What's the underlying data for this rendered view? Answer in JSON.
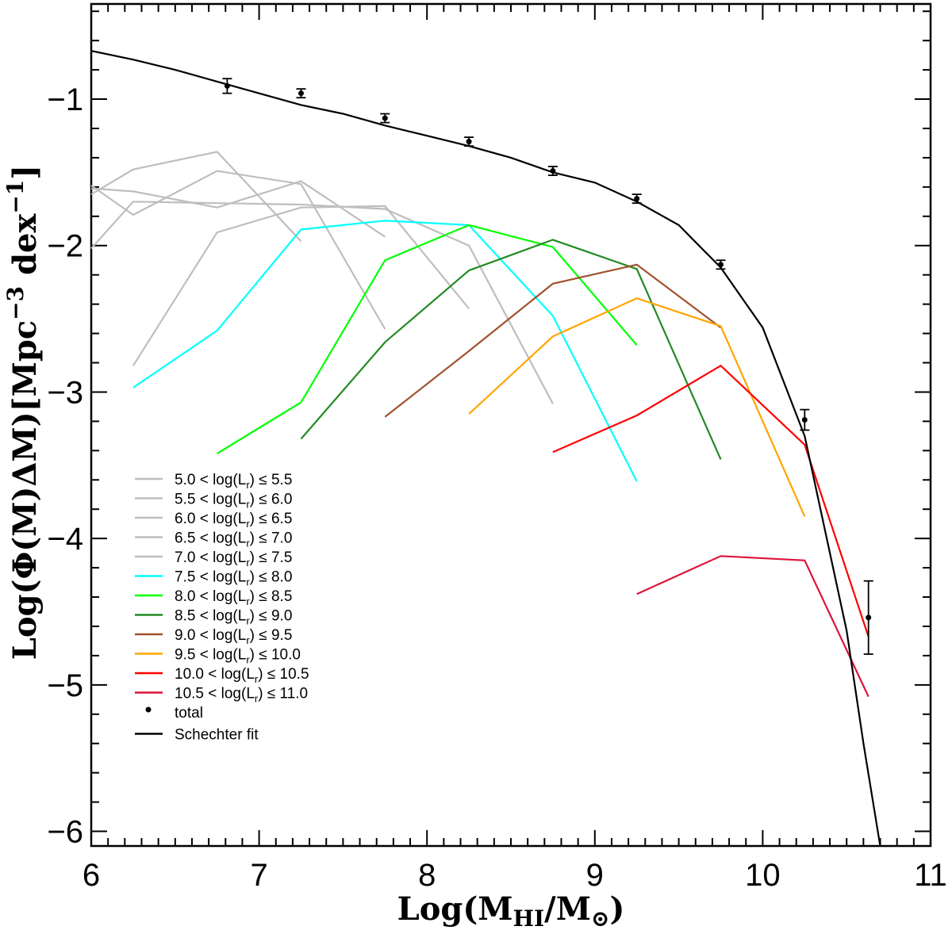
{
  "chart_data": {
    "type": "line",
    "xlabel": "Log(M_HI/M_⊙)",
    "ylabel": "Log(Φ(M)ΔM)[Mpc^-3 dex^-1]",
    "xlim": [
      6,
      11
    ],
    "ylim": [
      -6.1,
      -0.35
    ],
    "xticks": [
      6,
      7,
      8,
      9,
      10,
      11
    ],
    "yticks": [
      -6,
      -5,
      -4,
      -3,
      -2,
      -1
    ],
    "xtick_labels": [
      "6",
      "7",
      "8",
      "9",
      "10",
      "11"
    ],
    "ytick_labels": [
      "−6",
      "−5",
      "−4",
      "−3",
      "−2",
      "−1"
    ],
    "legend_position": "lower-left",
    "series": [
      {
        "name": "5.0 < log(L_r) ≤ 5.5",
        "color": "#bebebe",
        "x": [
          6.0,
          6.25,
          6.75,
          7.25
        ],
        "y": [
          -1.65,
          -1.48,
          -1.36,
          -1.97
        ]
      },
      {
        "name": "5.5 < log(L_r) ≤ 6.0",
        "color": "#bebebe",
        "x": [
          6.0,
          6.25,
          6.75,
          7.25,
          7.75
        ],
        "y": [
          -1.61,
          -1.63,
          -1.74,
          -1.56,
          -1.94
        ]
      },
      {
        "name": "6.0 < log(L_r) ≤ 6.5",
        "color": "#bebebe",
        "x": [
          6.0,
          6.25,
          6.75,
          7.25,
          7.75
        ],
        "y": [
          -1.59,
          -1.79,
          -1.49,
          -1.58,
          -2.57
        ]
      },
      {
        "name": "6.5 < log(L_r) ≤ 7.0",
        "color": "#bebebe",
        "x": [
          6.0,
          6.25,
          6.75,
          7.25,
          7.75,
          8.25,
          8.75
        ],
        "y": [
          -2.02,
          -1.7,
          -1.71,
          -1.72,
          -1.75,
          -2.0,
          -3.08
        ]
      },
      {
        "name": "7.0 < log(L_r) ≤ 7.5",
        "color": "#bebebe",
        "x": [
          6.25,
          6.75,
          7.25,
          7.75,
          8.25
        ],
        "y": [
          -2.82,
          -1.91,
          -1.74,
          -1.73,
          -2.43
        ]
      },
      {
        "name": "7.5 < log(L_r) ≤ 8.0",
        "color": "#00ffff",
        "x": [
          6.25,
          6.75,
          7.25,
          7.75,
          8.25,
          8.75,
          9.25
        ],
        "y": [
          -2.97,
          -2.58,
          -1.89,
          -1.83,
          -1.86,
          -2.48,
          -3.61
        ]
      },
      {
        "name": "8.0 < log(L_r) ≤ 8.5",
        "color": "#00ff00",
        "x": [
          6.75,
          7.25,
          7.75,
          8.25,
          8.75,
          9.25
        ],
        "y": [
          -3.42,
          -3.07,
          -2.1,
          -1.86,
          -2.01,
          -2.68
        ]
      },
      {
        "name": "8.5 < log(L_r) ≤ 9.0",
        "color": "#228b22",
        "x": [
          7.25,
          7.75,
          8.25,
          8.75,
          9.25,
          9.75
        ],
        "y": [
          -3.32,
          -2.66,
          -2.17,
          -1.96,
          -2.16,
          -3.46
        ]
      },
      {
        "name": "9.0 < log(L_r) ≤ 9.5",
        "color": "#a0522d",
        "x": [
          7.75,
          8.25,
          8.75,
          9.25,
          9.75
        ],
        "y": [
          -3.17,
          -2.72,
          -2.26,
          -2.13,
          -2.56
        ]
      },
      {
        "name": "9.5 < log(L_r) ≤ 10.0",
        "color": "#ffa500",
        "x": [
          8.25,
          8.75,
          9.25,
          9.75,
          10.25
        ],
        "y": [
          -3.15,
          -2.62,
          -2.36,
          -2.55,
          -3.85
        ]
      },
      {
        "name": "10.0 < log(L_r) ≤ 10.5",
        "color": "#ff0000",
        "x": [
          8.75,
          9.25,
          9.75,
          10.25,
          10.63
        ],
        "y": [
          -3.41,
          -3.16,
          -2.82,
          -3.36,
          -4.67
        ]
      },
      {
        "name": "10.5 < log(L_r) ≤ 11.0",
        "color": "#dc143c",
        "x": [
          9.25,
          9.75,
          10.25,
          10.63
        ],
        "y": [
          -4.38,
          -4.12,
          -4.15,
          -5.08
        ]
      }
    ],
    "total": {
      "name": "total",
      "color": "#000000",
      "x": [
        6.81,
        7.25,
        7.75,
        8.25,
        8.75,
        9.25,
        9.75,
        10.25,
        10.63
      ],
      "y": [
        -0.91,
        -0.96,
        -1.13,
        -1.29,
        -1.49,
        -1.68,
        -2.13,
        -3.19,
        -4.54
      ],
      "err_low": [
        0.05,
        0.03,
        0.03,
        0.03,
        0.03,
        0.03,
        0.03,
        0.07,
        0.25
      ],
      "err_high": [
        0.05,
        0.03,
        0.03,
        0.03,
        0.03,
        0.03,
        0.03,
        0.07,
        0.25
      ]
    },
    "schechter_fit": {
      "name": "Schechter fit",
      "color": "#000000",
      "x": [
        6.0,
        6.25,
        6.5,
        6.75,
        7.0,
        7.25,
        7.5,
        7.75,
        8.0,
        8.25,
        8.5,
        8.75,
        9.0,
        9.25,
        9.5,
        9.75,
        10.0,
        10.25,
        10.5,
        10.6,
        10.7
      ],
      "y": [
        -0.67,
        -0.73,
        -0.8,
        -0.88,
        -0.96,
        -1.04,
        -1.1,
        -1.18,
        -1.25,
        -1.32,
        -1.4,
        -1.5,
        -1.57,
        -1.7,
        -1.86,
        -2.15,
        -2.56,
        -3.3,
        -4.63,
        -5.4,
        -6.1
      ]
    }
  }
}
